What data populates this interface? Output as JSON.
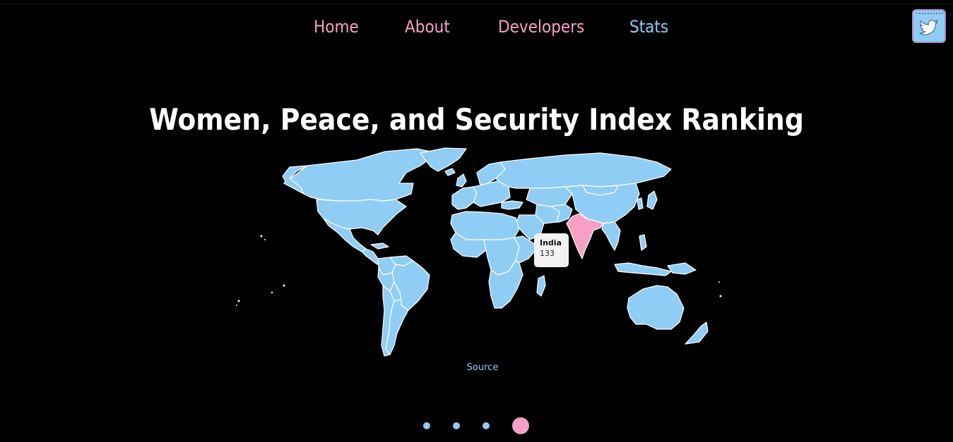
{
  "nav": {
    "items": [
      {
        "label": "Home",
        "color": "#f7a0c6"
      },
      {
        "label": "About",
        "color": "#f7a0c6"
      },
      {
        "label": "Developers",
        "color": "#f7a0c6"
      },
      {
        "label": "Stats",
        "color": "#8fcdf5"
      }
    ]
  },
  "social": {
    "icon": "twitter-icon"
  },
  "page": {
    "title": "Women, Peace, and Security Index Ranking"
  },
  "map": {
    "default_color": "#8fcdf5",
    "highlight_color": "#f7a0c6",
    "border_color": "#ffffff",
    "highlighted_country": "India",
    "tooltip": {
      "country": "India",
      "value": "133"
    }
  },
  "source": {
    "label": "Source"
  },
  "carousel": {
    "count": 4,
    "active_index": 3,
    "inactive_color": "#8fcdf5",
    "active_color": "#f7a0c6"
  }
}
